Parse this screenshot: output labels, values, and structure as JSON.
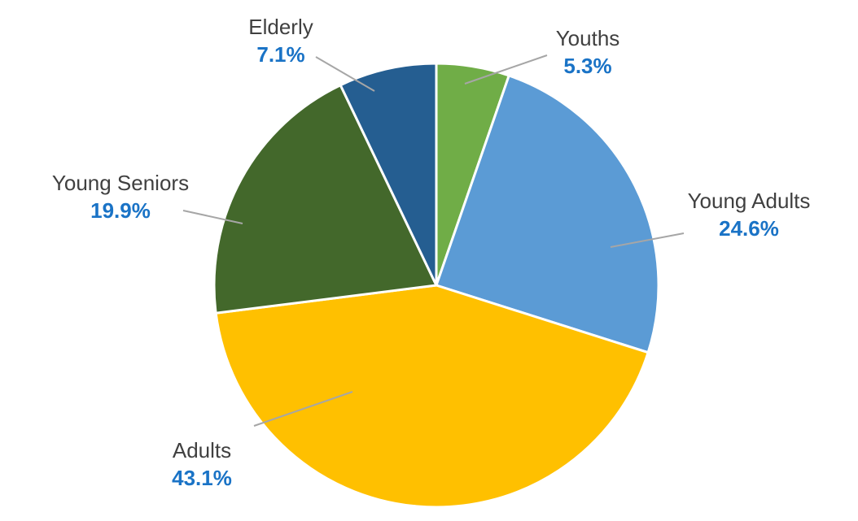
{
  "chart_data": {
    "type": "pie",
    "title": "",
    "slices": [
      {
        "label": "Youths",
        "value": 5.3,
        "display": "5.3%",
        "color": "#70ad47"
      },
      {
        "label": "Young Adults",
        "value": 24.6,
        "display": "24.6%",
        "color": "#5b9bd5"
      },
      {
        "label": "Adults",
        "value": 43.1,
        "display": "43.1%",
        "color": "#ffc000"
      },
      {
        "label": "Young Seniors",
        "value": 19.9,
        "display": "19.9%",
        "color": "#43682b"
      },
      {
        "label": "Elderly",
        "value": 7.1,
        "display": "7.1%",
        "color": "#255e91"
      }
    ],
    "start_angle_deg": 0,
    "direction": "clockwise",
    "legend": "none",
    "label_value_color": "#1a73c6",
    "label_name_color": "#404040",
    "leader_line_color": "#a6a6a6"
  }
}
